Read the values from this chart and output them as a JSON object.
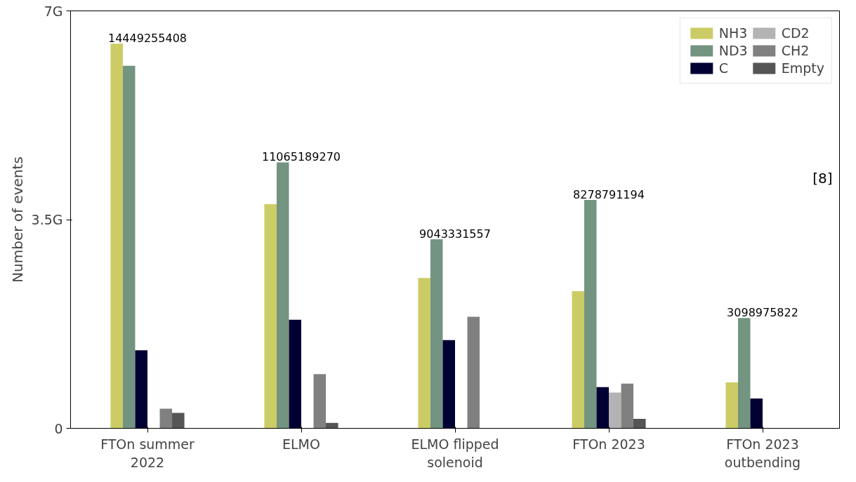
{
  "chart_data": {
    "type": "bar",
    "ylabel": "Number of events",
    "categories": [
      "FTOn summer\n2022",
      "ELMO",
      "ELMO flipped\nsolenoid",
      "FTOn 2023",
      "FTOn 2023\noutbending"
    ],
    "series": [
      {
        "name": "NH3",
        "color": "#cccc66",
        "values": [
          6.45,
          3.76,
          2.52,
          2.3,
          0.77
        ]
      },
      {
        "name": "ND3",
        "color": "#739480",
        "values": [
          6.08,
          4.46,
          3.17,
          3.83,
          1.85
        ]
      },
      {
        "name": "C",
        "color": "#000033",
        "values": [
          1.31,
          1.82,
          1.48,
          0.69,
          0.5
        ]
      },
      {
        "name": "CD2",
        "color": "#b3b3b3",
        "values": [
          null,
          null,
          null,
          0.6,
          null
        ]
      },
      {
        "name": "CH2",
        "color": "#808080",
        "values": [
          0.33,
          0.91,
          1.87,
          0.75,
          null
        ]
      },
      {
        "name": "Empty",
        "color": "#555555",
        "values": [
          0.26,
          0.09,
          null,
          0.16,
          null
        ]
      }
    ],
    "ylim": [
      0,
      7
    ],
    "yticks": [
      0,
      {
        "value": 3.5,
        "label": "3.5G"
      },
      {
        "value": 7,
        "label": "7G"
      }
    ],
    "grid": false,
    "legend": "top right",
    "annotations": [
      "14449255408",
      "11065189270",
      "9043331557",
      "8278791194",
      "3098975822",
      "[8]"
    ]
  }
}
